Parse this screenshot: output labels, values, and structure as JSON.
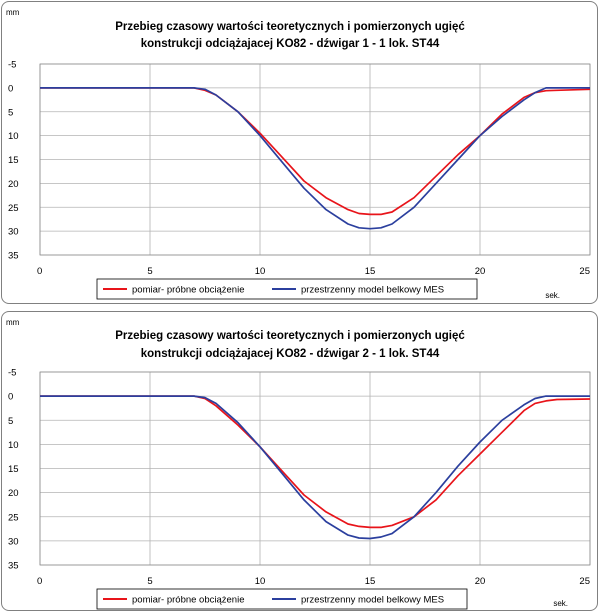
{
  "charts": [
    {
      "title_line1": "Przebieg czasowy wartości teoretycznych i pomierzonych ugięć",
      "title_line2": "konstrukcji odciążajacej KO82 - dźwigar 1 - 1 lok. ST44",
      "y_unit": "mm",
      "x_unit": "sek."
    },
    {
      "title_line1": "Przebieg czasowy wartości teoretycznych i pomierzonych ugięć",
      "title_line2": "konstrukcji odciążajacej KO82 - dźwigar 2 - 1 lok. ST44",
      "y_unit": "mm",
      "x_unit": "sek."
    }
  ],
  "chart_data": [
    {
      "type": "line",
      "title": "Przebieg czasowy wartości teoretycznych i pomierzonych ugięć konstrukcji odciążajacej KO82 - dźwigar 1 - 1 lok. ST44",
      "xlabel": "sek.",
      "ylabel": "mm",
      "xlim": [
        0,
        25
      ],
      "ylim": [
        -5,
        35
      ],
      "y_inverted": true,
      "x_ticks": [
        "0",
        "5",
        "10",
        "15",
        "20",
        "25"
      ],
      "y_ticks": [
        "-5",
        "0",
        "5",
        "10",
        "15",
        "20",
        "25",
        "30",
        "35"
      ],
      "grid": true,
      "legend": "bottom",
      "series": [
        {
          "name": "pomiar- próbne obciążenie",
          "color": "#e8141a",
          "x": [
            0,
            7.0,
            7.5,
            8,
            9,
            10,
            11,
            12,
            13,
            14,
            14.5,
            15,
            15.5,
            16,
            17,
            18,
            19,
            20,
            21,
            22,
            22.5,
            23,
            23.5,
            25
          ],
          "y": [
            0,
            0,
            0.5,
            1.5,
            5,
            9.5,
            14.5,
            19.5,
            23,
            25.5,
            26.3,
            26.5,
            26.5,
            26,
            23,
            18.5,
            14,
            10,
            5.5,
            2,
            1,
            0.6,
            0.5,
            0.3
          ]
        },
        {
          "name": "przestrzenny model belkowy MES",
          "color": "#2b3f9e",
          "x": [
            0,
            7.0,
            7.5,
            8,
            9,
            10,
            11,
            12,
            13,
            14,
            14.5,
            15,
            15.5,
            16,
            17,
            18,
            19,
            20,
            21,
            22,
            22.5,
            23,
            25
          ],
          "y": [
            0,
            0,
            0.3,
            1.5,
            5,
            10,
            15.5,
            21,
            25.5,
            28.5,
            29.3,
            29.5,
            29.3,
            28.5,
            25,
            20,
            15,
            10,
            6,
            2.5,
            1,
            0,
            0
          ]
        }
      ]
    },
    {
      "type": "line",
      "title": "Przebieg czasowy wartości teoretycznych i pomierzonych ugięć konstrukcji odciążajacej KO82 - dźwigar 2 - 1 lok. ST44",
      "xlabel": "sek.",
      "ylabel": "mm",
      "xlim": [
        0,
        25
      ],
      "ylim": [
        -5,
        35
      ],
      "y_inverted": true,
      "x_ticks": [
        "0",
        "5",
        "10",
        "15",
        "20",
        "25"
      ],
      "y_ticks": [
        "-5",
        "0",
        "5",
        "10",
        "15",
        "20",
        "25",
        "30",
        "35"
      ],
      "grid": true,
      "legend": "bottom",
      "series": [
        {
          "name": "pomiar- próbne obciążenie",
          "color": "#e8141a",
          "x": [
            0,
            7.0,
            7.5,
            8,
            9,
            10,
            11,
            12,
            13,
            14,
            14.5,
            15,
            15.5,
            16,
            17,
            18,
            19,
            20,
            21,
            22,
            22.5,
            23,
            23.5,
            25
          ],
          "y": [
            0,
            0,
            0.5,
            2,
            6,
            10.5,
            15.5,
            20.5,
            24,
            26.5,
            27,
            27.2,
            27.2,
            26.8,
            25,
            21.5,
            16.5,
            12,
            7.5,
            3,
            1.5,
            1,
            0.7,
            0.6
          ]
        },
        {
          "name": "przestrzenny model belkowy MES",
          "color": "#2b3f9e",
          "x": [
            0,
            7.0,
            7.5,
            8,
            9,
            10,
            11,
            12,
            13,
            14,
            14.5,
            15,
            15.5,
            16,
            17,
            18,
            19,
            20,
            21,
            22,
            22.5,
            23,
            25
          ],
          "y": [
            0,
            0,
            0.3,
            1.5,
            5.5,
            10.5,
            16,
            21.5,
            26,
            28.8,
            29.4,
            29.5,
            29.2,
            28.5,
            25,
            20,
            14.5,
            9.5,
            5,
            1.8,
            0.5,
            0,
            0
          ]
        }
      ]
    }
  ]
}
